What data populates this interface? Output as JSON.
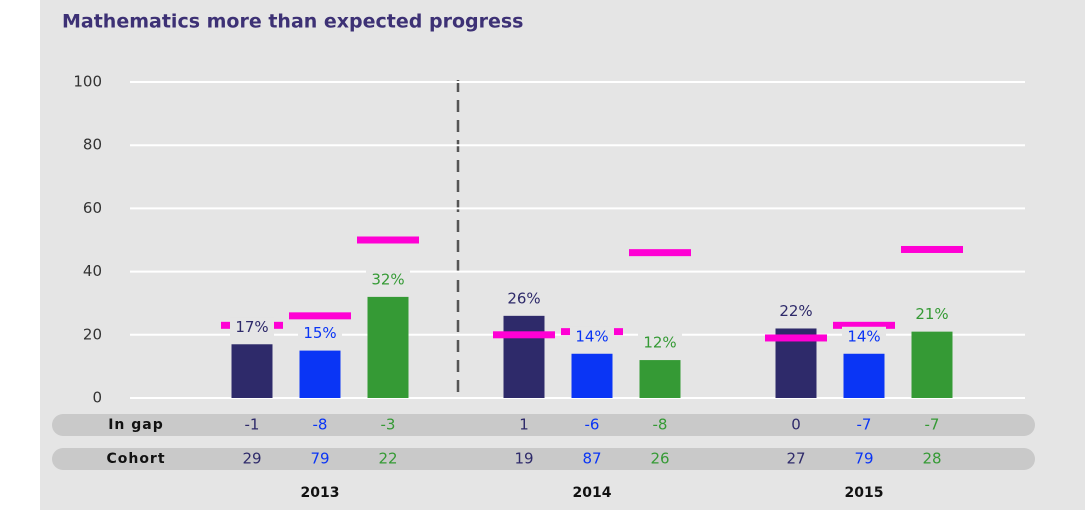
{
  "chart_data": {
    "type": "bar",
    "title": "Mathematics more than expected progress",
    "categories": [
      "2013",
      "2014",
      "2015"
    ],
    "series": [
      {
        "color": "#2e2a6a",
        "values": [
          17,
          26,
          22
        ],
        "value_labels": [
          "17%",
          "26%",
          "22%"
        ],
        "benchmarks": [
          23,
          20,
          19
        ]
      },
      {
        "color": "#0a35f5",
        "values": [
          15,
          14,
          14
        ],
        "value_labels": [
          "15%",
          "14%",
          "14%"
        ],
        "benchmarks": [
          26,
          21,
          23
        ]
      },
      {
        "color": "#359a35",
        "values": [
          32,
          12,
          21
        ],
        "value_labels": [
          "32%",
          "12%",
          "21%"
        ],
        "benchmarks": [
          50,
          46,
          47
        ]
      }
    ],
    "benchmark_color": "#ff00d4",
    "ylim": [
      0,
      100
    ],
    "yticks": [
      0,
      20,
      40,
      60,
      80,
      100
    ],
    "grid": true,
    "rows": [
      {
        "label": "In gap",
        "values": [
          [
            -1,
            -8,
            -3
          ],
          [
            1,
            -6,
            -8
          ],
          [
            0,
            -7,
            -7
          ]
        ]
      },
      {
        "label": "Cohort",
        "values": [
          [
            29,
            79,
            22
          ],
          [
            19,
            87,
            26
          ],
          [
            27,
            79,
            28
          ]
        ]
      }
    ]
  }
}
